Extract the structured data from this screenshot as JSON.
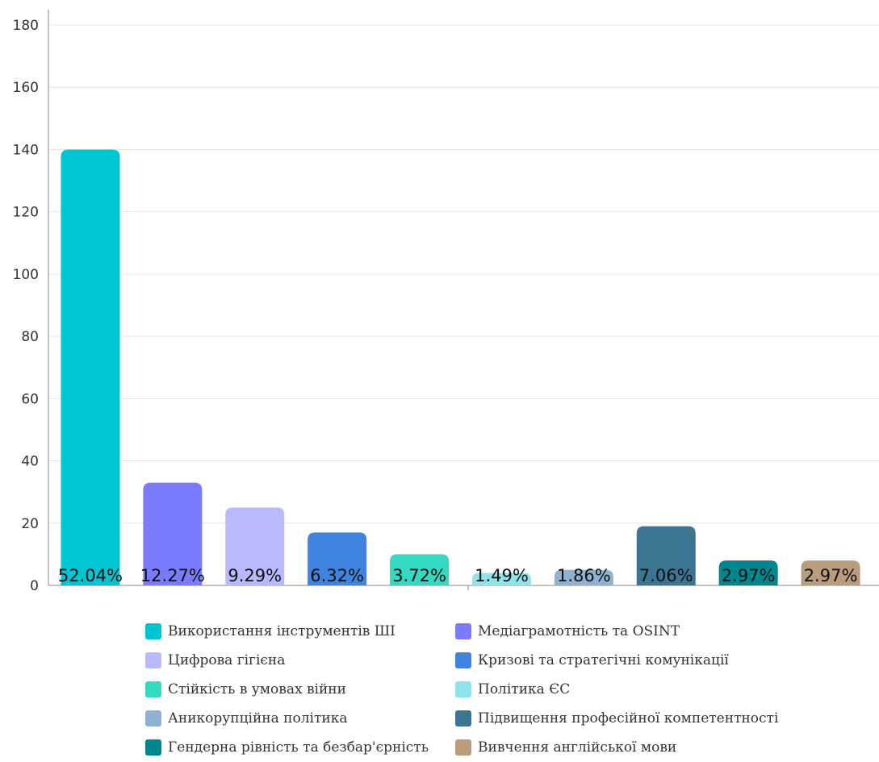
{
  "chart_data": {
    "type": "bar",
    "title": "",
    "xlabel": "",
    "ylabel": "",
    "ylim": [
      0,
      180
    ],
    "yticks": [
      0,
      20,
      40,
      60,
      80,
      100,
      120,
      140,
      160,
      180
    ],
    "grid": true,
    "legend_position": "bottom",
    "categories": [
      "Використання інструментів ШІ",
      "Медіаграмотність та OSINT",
      "Цифрова гігієна",
      "Кризові та стратегічні комунікації",
      "Стійкість в умовах війни",
      "Політика ЄС",
      "Аникорупційна політика",
      "Підвищення професійної компетентності",
      "Гендерна рівність та безбар'єрність",
      "Вивчення англійської мови"
    ],
    "values": [
      140,
      33,
      25,
      17,
      10,
      4,
      5,
      19,
      8,
      8
    ],
    "data_labels": [
      "52.04%",
      "12.27%",
      "9.29%",
      "6.32%",
      "3.72%",
      "1.49%",
      "1.86%",
      "7.06%",
      "2.97%",
      "2.97%"
    ],
    "colors": [
      "#00c5d0",
      "#7b7bff",
      "#b9b9ff",
      "#3f84de",
      "#33d9c1",
      "#8fe3ea",
      "#8fb2d2",
      "#3b7592",
      "#00878d",
      "#b89c7d"
    ],
    "legend_order": [
      0,
      1,
      2,
      3,
      4,
      5,
      6,
      7,
      8,
      9
    ]
  }
}
